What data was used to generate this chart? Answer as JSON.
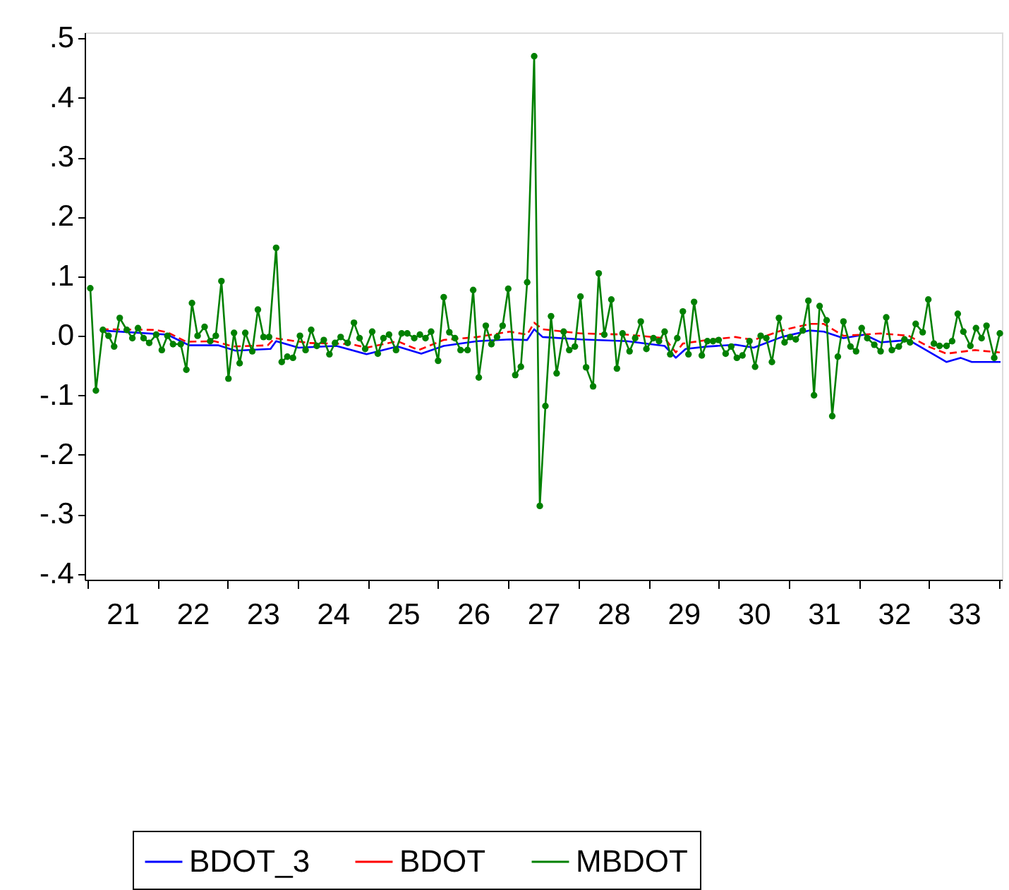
{
  "chart_data": {
    "type": "line",
    "xlim": [
      20.96,
      34.04
    ],
    "xticks": [
      {
        "value": 21,
        "label": null
      },
      {
        "value": 21.5,
        "label": "21"
      },
      {
        "value": 22,
        "label": null
      },
      {
        "value": 22.5,
        "label": "22"
      },
      {
        "value": 23,
        "label": null
      },
      {
        "value": 23.5,
        "label": "23"
      },
      {
        "value": 24,
        "label": null
      },
      {
        "value": 24.5,
        "label": "24"
      },
      {
        "value": 25,
        "label": null
      },
      {
        "value": 25.5,
        "label": "25"
      },
      {
        "value": 26,
        "label": null
      },
      {
        "value": 26.5,
        "label": "26"
      },
      {
        "value": 27,
        "label": null
      },
      {
        "value": 27.5,
        "label": "27"
      },
      {
        "value": 28,
        "label": null
      },
      {
        "value": 28.5,
        "label": "28"
      },
      {
        "value": 29,
        "label": null
      },
      {
        "value": 29.5,
        "label": "29"
      },
      {
        "value": 30,
        "label": null
      },
      {
        "value": 30.5,
        "label": "30"
      },
      {
        "value": 31,
        "label": null
      },
      {
        "value": 31.5,
        "label": "31"
      },
      {
        "value": 32,
        "label": null
      },
      {
        "value": 32.5,
        "label": "32"
      },
      {
        "value": 33,
        "label": null
      },
      {
        "value": 33.5,
        "label": "33"
      },
      {
        "value": 34,
        "label": null
      }
    ],
    "ylim": [
      -0.41,
      0.51
    ],
    "yticks": [
      {
        "value": 0.5,
        "label": ".5"
      },
      {
        "value": 0.4,
        "label": ".4"
      },
      {
        "value": 0.3,
        "label": ".3"
      },
      {
        "value": 0.2,
        "label": ".2"
      },
      {
        "value": 0.1,
        "label": ".1"
      },
      {
        "value": 0,
        "label": ".0"
      },
      {
        "value": -0.1,
        "label": "-.1"
      },
      {
        "value": -0.2,
        "label": "-.2"
      },
      {
        "value": -0.3,
        "label": "-.3"
      },
      {
        "value": -0.4,
        "label": "-.4"
      }
    ],
    "grid": false,
    "legend": "bottom",
    "series": [
      {
        "name": "BDOT_3",
        "color": "#0000ff",
        "line_style": "solid",
        "marker": "none",
        "x": [
          21.2,
          22.14,
          22.45,
          22.87,
          23.11,
          23.61,
          23.69,
          24.01,
          24.55,
          24.98,
          25.42,
          25.76,
          26.08,
          26.56,
          27.02,
          27.27,
          27.37,
          27.49,
          28.03,
          28.69,
          29.23,
          29.39,
          29.53,
          29.84,
          30.24,
          30.5,
          30.9,
          31.3,
          31.5,
          31.78,
          32.08,
          32.31,
          32.71,
          33.25,
          33.45,
          33.61,
          34.02
        ],
        "values": [
          0.009,
          0.002,
          -0.016,
          -0.016,
          -0.025,
          -0.022,
          -0.009,
          -0.02,
          -0.017,
          -0.031,
          -0.018,
          -0.03,
          -0.017,
          -0.009,
          -0.006,
          -0.007,
          0.011,
          -0.002,
          -0.006,
          -0.009,
          -0.017,
          -0.037,
          -0.022,
          -0.018,
          -0.015,
          -0.02,
          -0.002,
          0.009,
          0.007,
          -0.004,
          0.002,
          -0.011,
          -0.007,
          -0.044,
          -0.037,
          -0.044,
          -0.044
        ]
      },
      {
        "name": "BDOT",
        "color": "#ff0000",
        "line_style": "dashed",
        "marker": "none",
        "x": [
          21.2,
          21.96,
          22.14,
          22.41,
          22.81,
          23.07,
          23.57,
          23.67,
          24.15,
          24.76,
          24.98,
          25.42,
          25.72,
          26.08,
          26.56,
          27.02,
          27.27,
          27.37,
          27.49,
          28.03,
          28.69,
          29.23,
          29.39,
          29.49,
          29.84,
          30.24,
          30.5,
          30.9,
          31.3,
          31.5,
          31.78,
          32.31,
          32.71,
          32.99,
          33.25,
          33.65,
          34.01
        ],
        "values": [
          0.011,
          0.01,
          0.006,
          -0.01,
          -0.009,
          -0.018,
          -0.016,
          -0.004,
          -0.012,
          -0.014,
          -0.02,
          -0.009,
          -0.024,
          -0.007,
          -0.002,
          0.007,
          0.002,
          0.022,
          0.011,
          0.004,
          0.002,
          -0.004,
          -0.028,
          -0.013,
          -0.007,
          -0.002,
          -0.007,
          0.009,
          0.02,
          0.02,
          0,
          0.004,
          0,
          -0.018,
          -0.03,
          -0.024,
          -0.028
        ]
      },
      {
        "name": "MBDOT",
        "color": "#008000",
        "line_style": "solid",
        "marker": "circle",
        "x": [
          21.04,
          21.12,
          21.22,
          21.3,
          21.38,
          21.46,
          21.56,
          21.64,
          21.72,
          21.8,
          21.88,
          21.98,
          22.06,
          22.14,
          22.22,
          22.33,
          22.41,
          22.49,
          22.57,
          22.67,
          22.75,
          22.83,
          22.91,
          23.01,
          23.09,
          23.17,
          23.25,
          23.35,
          23.43,
          23.51,
          23.59,
          23.69,
          23.77,
          23.85,
          23.93,
          24.03,
          24.11,
          24.19,
          24.27,
          24.37,
          24.45,
          24.53,
          24.61,
          24.71,
          24.8,
          24.88,
          24.96,
          25.06,
          25.14,
          25.22,
          25.3,
          25.4,
          25.48,
          25.56,
          25.66,
          25.74,
          25.82,
          25.9,
          26.0,
          26.08,
          26.16,
          26.24,
          26.32,
          26.42,
          26.5,
          26.58,
          26.68,
          26.76,
          26.84,
          26.92,
          27.0,
          27.1,
          27.18,
          27.27,
          27.37,
          27.45,
          27.53,
          27.61,
          27.69,
          27.79,
          27.87,
          27.95,
          28.03,
          28.11,
          28.21,
          28.29,
          28.37,
          28.47,
          28.55,
          28.63,
          28.73,
          28.81,
          28.89,
          28.97,
          29.07,
          29.15,
          29.23,
          29.31,
          29.41,
          29.49,
          29.57,
          29.65,
          29.76,
          29.84,
          29.92,
          30.0,
          30.1,
          30.18,
          30.26,
          30.34,
          30.44,
          30.52,
          30.6,
          30.68,
          30.76,
          30.86,
          30.94,
          31.02,
          31.1,
          31.2,
          31.28,
          31.36,
          31.44,
          31.54,
          31.62,
          31.7,
          31.78,
          31.88,
          31.96,
          32.04,
          32.12,
          32.22,
          32.31,
          32.39,
          32.47,
          32.57,
          32.65,
          32.73,
          32.81,
          32.91,
          32.99,
          33.07,
          33.15,
          33.25,
          33.33,
          33.41,
          33.49,
          33.59,
          33.67,
          33.75,
          33.82,
          33.93,
          34.01
        ],
        "values": [
          0.08,
          -0.092,
          0.01,
          0,
          -0.018,
          0.03,
          0.01,
          -0.004,
          0.013,
          -0.004,
          -0.012,
          0.002,
          -0.024,
          0,
          -0.014,
          -0.014,
          -0.057,
          0.055,
          0,
          0.015,
          -0.009,
          0,
          0.092,
          -0.072,
          0.005,
          -0.046,
          0.005,
          -0.026,
          0.044,
          -0.002,
          -0.002,
          0.148,
          -0.044,
          -0.035,
          -0.037,
          0,
          -0.024,
          0.01,
          -0.017,
          -0.007,
          -0.031,
          -0.012,
          -0.002,
          -0.012,
          0.022,
          -0.004,
          -0.022,
          0.007,
          -0.03,
          -0.004,
          0.002,
          -0.024,
          0.004,
          0.004,
          -0.004,
          0.002,
          -0.004,
          0.007,
          -0.042,
          0.065,
          0.006,
          -0.004,
          -0.024,
          -0.024,
          0.077,
          -0.07,
          0.017,
          -0.014,
          -0.002,
          0.017,
          0.079,
          -0.066,
          -0.052,
          0.09,
          0.47,
          -0.286,
          -0.118,
          0.033,
          -0.063,
          0.007,
          -0.024,
          -0.018,
          0.066,
          -0.053,
          -0.085,
          0.105,
          0.002,
          0.061,
          -0.055,
          0.004,
          -0.026,
          -0.004,
          0.024,
          -0.022,
          -0.004,
          -0.009,
          0.007,
          -0.031,
          -0.004,
          0.041,
          -0.031,
          0.057,
          -0.033,
          -0.009,
          -0.009,
          -0.007,
          -0.03,
          -0.018,
          -0.037,
          -0.033,
          -0.009,
          -0.052,
          0,
          -0.004,
          -0.044,
          0.03,
          -0.011,
          -0.002,
          -0.006,
          0.009,
          0.059,
          -0.1,
          0.05,
          0.026,
          -0.135,
          -0.035,
          0.024,
          -0.018,
          -0.026,
          0.013,
          -0.004,
          -0.015,
          -0.026,
          0.031,
          -0.024,
          -0.018,
          -0.006,
          -0.011,
          0.02,
          0.006,
          0.061,
          -0.013,
          -0.017,
          -0.017,
          -0.009,
          0.037,
          0.007,
          -0.017,
          0.013,
          -0.004,
          0.017,
          -0.037,
          0.004
        ]
      }
    ]
  }
}
